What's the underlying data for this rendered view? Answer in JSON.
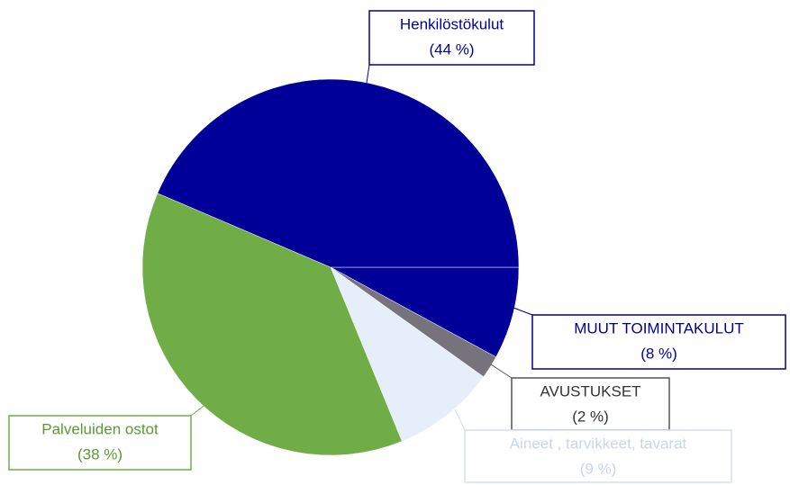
{
  "chart_data": {
    "type": "pie",
    "categories": [
      "MUUT TOIMINTAKULUT",
      "AVUSTUKSET",
      "Aineet , tarvikkeet, tavarat",
      "Palveluiden ostot",
      "Henkilöstökulut"
    ],
    "values": [
      8,
      2,
      9,
      38,
      44
    ],
    "value_labels": [
      "(8 %)",
      "(2 %)",
      "(9 %)",
      "(38 %)",
      "(44 %)"
    ],
    "colors": [
      "#000099",
      "#77737c",
      "#e6eef9",
      "#70ad47",
      "#000099"
    ]
  }
}
